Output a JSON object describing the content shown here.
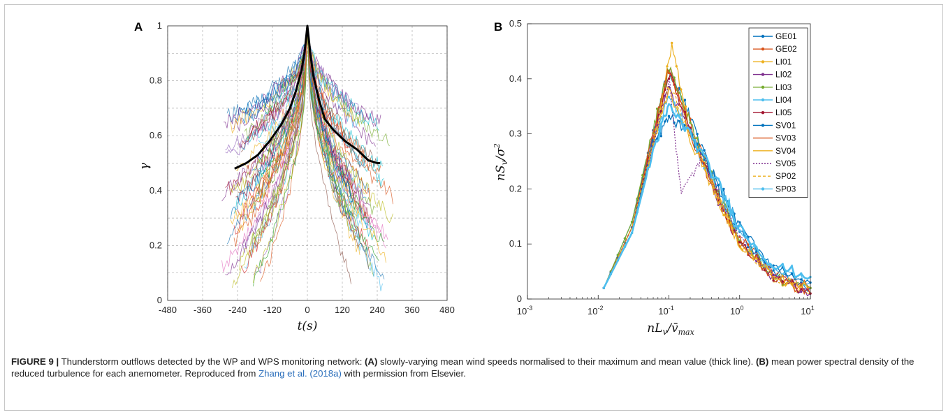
{
  "figure_label": "FIGURE 9 |",
  "caption": {
    "p1": " Thunderstorm outflows detected by the WP and WPS monitoring network: ",
    "a_marker": "(A)",
    "p2": " slowly-varying mean wind speeds normalised to their maximum and mean value (thick line). ",
    "b_marker": "(B)",
    "p3": " mean power spectral density of the reduced turbulence for each anemometer. Reproduced from ",
    "citation": "Zhang et al. (2018a)",
    "p4": " with permission from Elsevier."
  },
  "colors": {
    "thick_line": "#000000",
    "grid": "#b0b0b0",
    "series": [
      "#0072BD",
      "#D95319",
      "#EDB120",
      "#7E2F8E",
      "#77AC30",
      "#4DBEEE",
      "#A2142F",
      "#0072BD",
      "#D95319",
      "#EDB120",
      "#7E2F8E",
      "#EDB120",
      "#4DBEEE"
    ]
  },
  "chart_data": [
    {
      "panel": "A",
      "type": "line",
      "xlabel": "t(s)",
      "ylabel": "γ",
      "xlim": [
        -480,
        480
      ],
      "ylim": [
        0,
        1
      ],
      "xticks": [
        -480,
        -360,
        -240,
        -120,
        0,
        120,
        240,
        360,
        480
      ],
      "xtick_labels": [
        "-480",
        "-360",
        "-240",
        "-120",
        "0",
        "120",
        "240",
        "360",
        "480"
      ],
      "yticks": [
        0,
        0.2,
        0.4,
        0.6,
        0.8,
        1
      ],
      "ytick_labels": [
        "0",
        "0.2",
        "0.4",
        "0.6",
        "0.8",
        "1"
      ],
      "grid": true,
      "grid_style": "dashed",
      "series": [
        {
          "name": "mean (thick line)",
          "x": [
            -250,
            -210,
            -170,
            -130,
            -90,
            -60,
            -40,
            -20,
            -10,
            -5,
            0,
            5,
            10,
            20,
            40,
            60,
            90,
            130,
            170,
            210,
            240,
            250
          ],
          "y": [
            0.48,
            0.5,
            0.53,
            0.58,
            0.64,
            0.7,
            0.76,
            0.84,
            0.9,
            0.95,
            1.0,
            0.95,
            0.9,
            0.82,
            0.73,
            0.66,
            0.62,
            0.58,
            0.55,
            0.51,
            0.5,
            0.5
          ]
        }
      ],
      "individual_traces": "approximately 100 thin coloured traces from individual events, each peaking at 1 at t=0 and decaying to roughly 0.05–0.7 by ±240 s"
    },
    {
      "panel": "B",
      "type": "line",
      "xscale": "log",
      "xlabel": "nLv/v̄max",
      "ylabel": "nSv/σ²",
      "xlim": [
        0.001,
        10
      ],
      "ylim": [
        0,
        0.5
      ],
      "xtick_labels": [
        "10-3",
        "10-2",
        "10-1",
        "100",
        "101"
      ],
      "yticks": [
        0,
        0.1,
        0.2,
        0.3,
        0.4,
        0.5
      ],
      "ytick_labels": [
        "0",
        "0.1",
        "0.2",
        "0.3",
        "0.4",
        "0.5"
      ],
      "grid": false,
      "legend_position": "top-right",
      "series": [
        {
          "name": "GE01",
          "x": [
            0.012,
            0.03,
            0.06,
            0.1,
            0.2,
            0.5,
            1,
            3,
            10
          ],
          "y": [
            0.02,
            0.14,
            0.3,
            0.42,
            0.33,
            0.2,
            0.12,
            0.05,
            0.02
          ]
        },
        {
          "name": "GE02",
          "x": [
            0.012,
            0.03,
            0.06,
            0.1,
            0.2,
            0.5,
            1,
            3,
            10
          ],
          "y": [
            0.02,
            0.13,
            0.29,
            0.42,
            0.32,
            0.19,
            0.11,
            0.05,
            0.02
          ]
        },
        {
          "name": "LI01",
          "x": [
            0.012,
            0.03,
            0.06,
            0.11,
            0.2,
            0.5,
            1,
            3,
            10
          ],
          "y": [
            0.02,
            0.12,
            0.28,
            0.46,
            0.3,
            0.18,
            0.1,
            0.04,
            0.01
          ]
        },
        {
          "name": "LI02",
          "x": [
            0.012,
            0.03,
            0.06,
            0.1,
            0.2,
            0.5,
            1,
            3,
            10
          ],
          "y": [
            0.02,
            0.13,
            0.3,
            0.38,
            0.31,
            0.18,
            0.1,
            0.04,
            0.01
          ]
        },
        {
          "name": "LI03",
          "x": [
            0.012,
            0.03,
            0.06,
            0.1,
            0.2,
            0.5,
            1,
            3,
            10
          ],
          "y": [
            0.02,
            0.14,
            0.31,
            0.42,
            0.32,
            0.19,
            0.11,
            0.04,
            0.02
          ]
        },
        {
          "name": "LI04",
          "x": [
            0.012,
            0.03,
            0.06,
            0.1,
            0.2,
            0.5,
            1,
            3,
            10
          ],
          "y": [
            0.02,
            0.12,
            0.28,
            0.37,
            0.3,
            0.19,
            0.12,
            0.05,
            0.03
          ]
        },
        {
          "name": "LI05",
          "x": [
            0.012,
            0.03,
            0.06,
            0.1,
            0.2,
            0.5,
            1,
            3,
            10
          ],
          "y": [
            0.02,
            0.13,
            0.29,
            0.41,
            0.31,
            0.18,
            0.1,
            0.04,
            0.01
          ]
        },
        {
          "name": "SV01",
          "x": [
            0.012,
            0.03,
            0.06,
            0.1,
            0.2,
            0.5,
            1,
            3,
            10
          ],
          "y": [
            0.02,
            0.13,
            0.28,
            0.33,
            0.3,
            0.21,
            0.13,
            0.06,
            0.03
          ]
        },
        {
          "name": "SV03",
          "x": [
            0.012,
            0.03,
            0.06,
            0.1,
            0.2,
            0.5,
            1,
            3,
            10
          ],
          "y": [
            0.02,
            0.13,
            0.3,
            0.42,
            0.3,
            0.18,
            0.1,
            0.04,
            0.01
          ]
        },
        {
          "name": "SV04",
          "x": [
            0.012,
            0.03,
            0.06,
            0.1,
            0.2,
            0.5,
            1,
            3,
            10
          ],
          "y": [
            0.02,
            0.12,
            0.28,
            0.38,
            0.29,
            0.18,
            0.1,
            0.04,
            0.02
          ]
        },
        {
          "name": "SV05",
          "x": [
            0.012,
            0.03,
            0.06,
            0.1,
            0.15,
            0.3,
            0.5,
            1,
            3,
            10
          ],
          "y": [
            0.02,
            0.12,
            0.28,
            0.4,
            0.19,
            0.26,
            0.19,
            0.11,
            0.04,
            0.02
          ]
        },
        {
          "name": "SP02",
          "x": [
            0.012,
            0.03,
            0.06,
            0.1,
            0.2,
            0.5,
            1,
            3,
            10
          ],
          "y": [
            0.02,
            0.13,
            0.29,
            0.39,
            0.3,
            0.18,
            0.1,
            0.04,
            0.02
          ]
        },
        {
          "name": "SP03",
          "x": [
            0.012,
            0.03,
            0.06,
            0.1,
            0.2,
            0.5,
            1,
            3,
            10
          ],
          "y": [
            0.02,
            0.12,
            0.27,
            0.35,
            0.3,
            0.21,
            0.13,
            0.06,
            0.04
          ]
        }
      ]
    }
  ]
}
